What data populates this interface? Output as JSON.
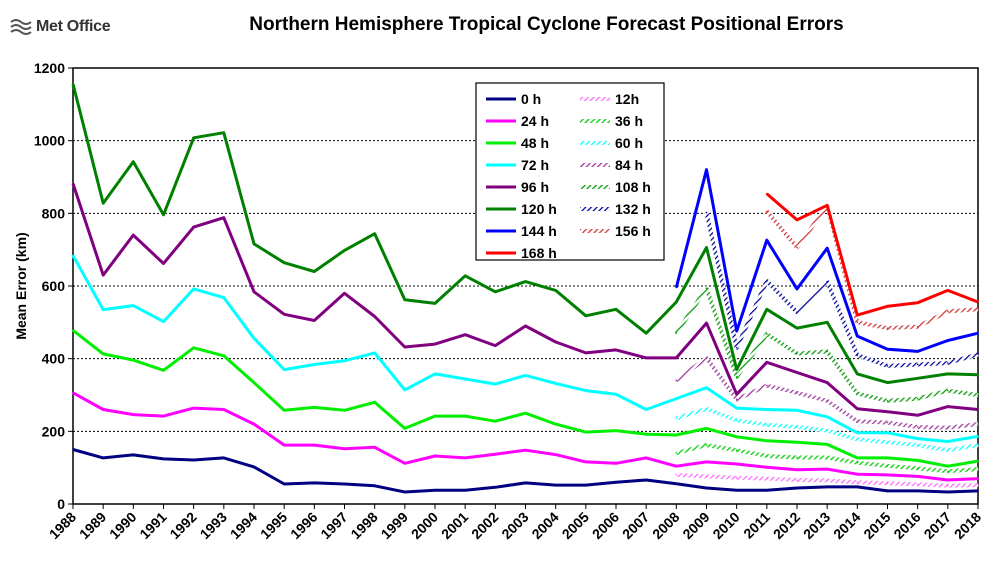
{
  "header": {
    "logo_text": "Met Office",
    "title": "Northern Hemisphere Tropical Cyclone Forecast Positional Errors"
  },
  "chart_data": {
    "type": "line",
    "title": "Northern Hemisphere Tropical Cyclone Forecast Positional Errors",
    "xlabel": "",
    "ylabel": "Mean Error (km)",
    "ylim": [
      0,
      1200
    ],
    "yticks": [
      0,
      200,
      400,
      600,
      800,
      1000,
      1200
    ],
    "grid": "horizontal dotted",
    "legend_position": "top-center",
    "x": [
      1988,
      1989,
      1990,
      1991,
      1992,
      1993,
      1994,
      1995,
      1996,
      1997,
      1998,
      1999,
      2000,
      2001,
      2002,
      2003,
      2004,
      2005,
      2006,
      2007,
      2008,
      2009,
      2010,
      2011,
      2012,
      2013,
      2014,
      2015,
      2016,
      2017,
      2018
    ],
    "series": [
      {
        "name": "0 h",
        "color": "#000080",
        "style": "solid",
        "values": [
          150,
          127,
          135,
          124,
          121,
          127,
          102,
          55,
          58,
          55,
          50,
          33,
          38,
          38,
          46,
          58,
          52,
          52,
          60,
          66,
          56,
          44,
          38,
          38,
          44,
          47,
          47,
          36,
          36,
          33,
          36
        ]
      },
      {
        "name": "12h",
        "color": "#ff66ff",
        "style": "hatched",
        "values": [
          null,
          null,
          null,
          null,
          null,
          null,
          null,
          null,
          null,
          null,
          null,
          null,
          null,
          null,
          null,
          null,
          null,
          null,
          null,
          null,
          80,
          76,
          72,
          70,
          66,
          65,
          60,
          57,
          54,
          50,
          52
        ]
      },
      {
        "name": "24 h",
        "color": "#ff00ff",
        "style": "solid",
        "values": [
          306,
          260,
          246,
          242,
          264,
          260,
          220,
          162,
          162,
          152,
          156,
          112,
          132,
          127,
          137,
          148,
          136,
          116,
          112,
          127,
          104,
          116,
          110,
          101,
          94,
          96,
          82,
          80,
          76,
          66,
          70
        ]
      },
      {
        "name": "36 h",
        "color": "#00cc00",
        "style": "hatched",
        "values": [
          null,
          null,
          null,
          null,
          null,
          null,
          null,
          null,
          null,
          null,
          null,
          null,
          null,
          null,
          null,
          null,
          null,
          null,
          null,
          null,
          140,
          162,
          148,
          132,
          128,
          128,
          114,
          105,
          98,
          90,
          96
        ]
      },
      {
        "name": "48 h",
        "color": "#00ee00",
        "style": "solid",
        "values": [
          478,
          413,
          396,
          368,
          430,
          408,
          334,
          258,
          266,
          258,
          280,
          208,
          242,
          242,
          228,
          250,
          220,
          198,
          202,
          192,
          190,
          208,
          185,
          174,
          170,
          164,
          127,
          127,
          120,
          104,
          118
        ]
      },
      {
        "name": "60 h",
        "color": "#00ffff",
        "style": "hatched",
        "values": [
          null,
          null,
          null,
          null,
          null,
          null,
          null,
          null,
          null,
          null,
          null,
          null,
          null,
          null,
          null,
          null,
          null,
          null,
          null,
          null,
          236,
          262,
          230,
          218,
          212,
          202,
          178,
          170,
          162,
          148,
          162
        ]
      },
      {
        "name": "72 h",
        "color": "#00ffff",
        "style": "solid",
        "values": [
          684,
          535,
          546,
          502,
          592,
          568,
          456,
          370,
          384,
          394,
          416,
          314,
          358,
          344,
          330,
          354,
          332,
          312,
          302,
          260,
          290,
          320,
          264,
          260,
          258,
          240,
          196,
          196,
          180,
          172,
          186
        ]
      },
      {
        "name": "84 h",
        "color": "#993399",
        "style": "hatched",
        "values": [
          null,
          null,
          null,
          null,
          null,
          null,
          null,
          null,
          null,
          null,
          null,
          null,
          null,
          null,
          null,
          null,
          null,
          null,
          null,
          null,
          340,
          402,
          288,
          326,
          306,
          284,
          228,
          224,
          212,
          210,
          220
        ]
      },
      {
        "name": "96 h",
        "color": "#800080",
        "style": "solid",
        "values": [
          882,
          630,
          740,
          662,
          762,
          788,
          584,
          522,
          505,
          580,
          516,
          432,
          440,
          466,
          436,
          490,
          446,
          416,
          424,
          402,
          402,
          498,
          302,
          390,
          362,
          334,
          262,
          254,
          244,
          268,
          260
        ]
      },
      {
        "name": "108 h",
        "color": "#009900",
        "style": "hatched",
        "values": [
          null,
          null,
          null,
          null,
          null,
          null,
          null,
          null,
          null,
          null,
          null,
          null,
          null,
          null,
          null,
          null,
          null,
          null,
          null,
          null,
          470,
          594,
          350,
          468,
          414,
          420,
          304,
          284,
          290,
          312,
          300
        ]
      },
      {
        "name": "120 h",
        "color": "#008000",
        "style": "solid",
        "values": [
          1156,
          828,
          942,
          796,
          1008,
          1022,
          716,
          664,
          640,
          698,
          744,
          562,
          552,
          628,
          584,
          612,
          588,
          518,
          536,
          470,
          556,
          706,
          370,
          536,
          484,
          500,
          358,
          334,
          346,
          358,
          356
        ]
      },
      {
        "name": "132 h",
        "color": "#000099",
        "style": "hatched",
        "values": [
          null,
          null,
          null,
          null,
          null,
          null,
          null,
          null,
          null,
          null,
          null,
          null,
          null,
          null,
          null,
          null,
          null,
          null,
          null,
          null,
          null,
          802,
          430,
          614,
          528,
          612,
          410,
          380,
          384,
          388,
          412
        ]
      },
      {
        "name": "144 h",
        "color": "#0000ff",
        "style": "solid",
        "values": [
          null,
          null,
          null,
          null,
          null,
          null,
          null,
          null,
          null,
          null,
          null,
          null,
          null,
          null,
          null,
          null,
          null,
          null,
          null,
          null,
          596,
          920,
          476,
          726,
          592,
          704,
          462,
          426,
          420,
          450,
          470
        ]
      },
      {
        "name": "156 h",
        "color": "#cc3333",
        "style": "hatched",
        "values": [
          null,
          null,
          null,
          null,
          null,
          null,
          null,
          null,
          null,
          null,
          null,
          null,
          null,
          null,
          null,
          null,
          null,
          null,
          null,
          null,
          null,
          null,
          null,
          806,
          706,
          820,
          500,
          484,
          488,
          530,
          536
        ]
      },
      {
        "name": "168 h",
        "color": "#ff0000",
        "style": "solid",
        "values": [
          null,
          null,
          null,
          null,
          null,
          null,
          null,
          null,
          null,
          null,
          null,
          null,
          null,
          null,
          null,
          null,
          null,
          null,
          null,
          null,
          null,
          null,
          null,
          854,
          782,
          822,
          520,
          544,
          554,
          588,
          556
        ]
      }
    ]
  }
}
